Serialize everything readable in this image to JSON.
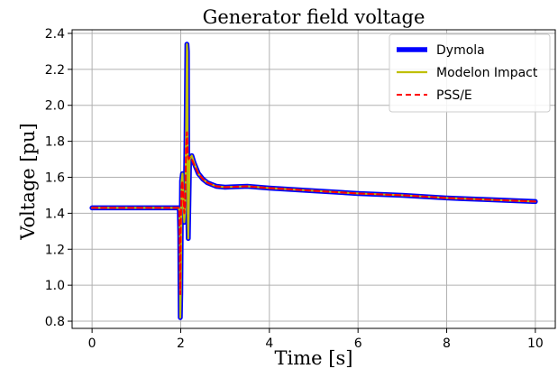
{
  "chart_data": {
    "type": "line",
    "title": "Generator field voltage",
    "xlabel": "Time [s]",
    "ylabel": "Voltage [pu]",
    "xlim": [
      -0.45,
      10.45
    ],
    "ylim": [
      0.76,
      2.42
    ],
    "xticks": [
      0,
      2,
      4,
      6,
      8,
      10
    ],
    "xtick_labels": [
      "0",
      "2",
      "4",
      "6",
      "8",
      "10"
    ],
    "yticks": [
      0.8,
      1.0,
      1.2,
      1.4,
      1.6,
      1.8,
      2.0,
      2.2,
      2.4
    ],
    "ytick_labels": [
      "0.8",
      "1.0",
      "1.2",
      "1.4",
      "1.6",
      "1.8",
      "2.0",
      "2.2",
      "2.4"
    ],
    "grid": true,
    "legend_position": "top-right",
    "series": [
      {
        "name": "Dymola",
        "color": "#0000ff",
        "style": "solid-thick",
        "x": [
          0,
          1.96,
          1.97,
          1.98,
          1.985,
          1.99,
          2.0,
          2.01,
          2.02,
          2.04,
          2.06,
          2.08,
          2.1,
          2.12,
          2.14,
          2.15,
          2.16,
          2.17,
          2.2,
          2.25,
          2.3,
          2.4,
          2.5,
          2.6,
          2.8,
          3.0,
          3.5,
          4.0,
          5.0,
          6.0,
          7.0,
          8.0,
          9.0,
          10.0
        ],
        "y": [
          1.43,
          1.43,
          1.41,
          1.28,
          1.0,
          0.82,
          0.95,
          1.28,
          1.58,
          1.62,
          1.45,
          1.35,
          1.42,
          1.8,
          2.34,
          2.3,
          1.4,
          1.26,
          1.7,
          1.72,
          1.68,
          1.62,
          1.59,
          1.57,
          1.55,
          1.545,
          1.55,
          1.54,
          1.525,
          1.51,
          1.5,
          1.485,
          1.475,
          1.465
        ]
      },
      {
        "name": "Modelon Impact",
        "color": "#bfbf00",
        "style": "solid",
        "x": [
          0,
          1.96,
          1.97,
          1.98,
          1.985,
          1.99,
          2.0,
          2.01,
          2.02,
          2.04,
          2.06,
          2.08,
          2.1,
          2.12,
          2.14,
          2.15,
          2.16,
          2.17,
          2.2,
          2.25,
          2.3,
          2.4,
          2.5,
          2.6,
          2.8,
          3.0,
          3.5,
          4.0,
          5.0,
          6.0,
          7.0,
          8.0,
          9.0,
          10.0
        ],
        "y": [
          1.43,
          1.43,
          1.41,
          1.28,
          1.0,
          0.82,
          0.95,
          1.28,
          1.58,
          1.62,
          1.45,
          1.35,
          1.42,
          1.8,
          2.34,
          2.3,
          1.4,
          1.26,
          1.7,
          1.72,
          1.68,
          1.62,
          1.59,
          1.57,
          1.55,
          1.545,
          1.55,
          1.54,
          1.525,
          1.51,
          1.5,
          1.485,
          1.475,
          1.465
        ]
      },
      {
        "name": "PSS/E",
        "color": "#ff0000",
        "style": "dashed",
        "x": [
          0,
          1.96,
          1.97,
          1.98,
          1.99,
          2.0,
          2.02,
          2.04,
          2.06,
          2.08,
          2.1,
          2.12,
          2.14,
          2.16,
          2.18,
          2.2,
          2.25,
          2.3,
          2.4,
          2.5,
          2.6,
          2.8,
          3.0,
          3.5,
          4.0,
          5.0,
          6.0,
          7.0,
          8.0,
          9.0,
          10.0
        ],
        "y": [
          1.43,
          1.43,
          1.4,
          1.2,
          0.95,
          1.3,
          1.55,
          1.58,
          1.48,
          1.4,
          1.45,
          1.75,
          1.85,
          1.72,
          1.7,
          1.71,
          1.7,
          1.67,
          1.62,
          1.59,
          1.57,
          1.55,
          1.545,
          1.55,
          1.54,
          1.525,
          1.51,
          1.5,
          1.485,
          1.475,
          1.465
        ]
      }
    ]
  }
}
